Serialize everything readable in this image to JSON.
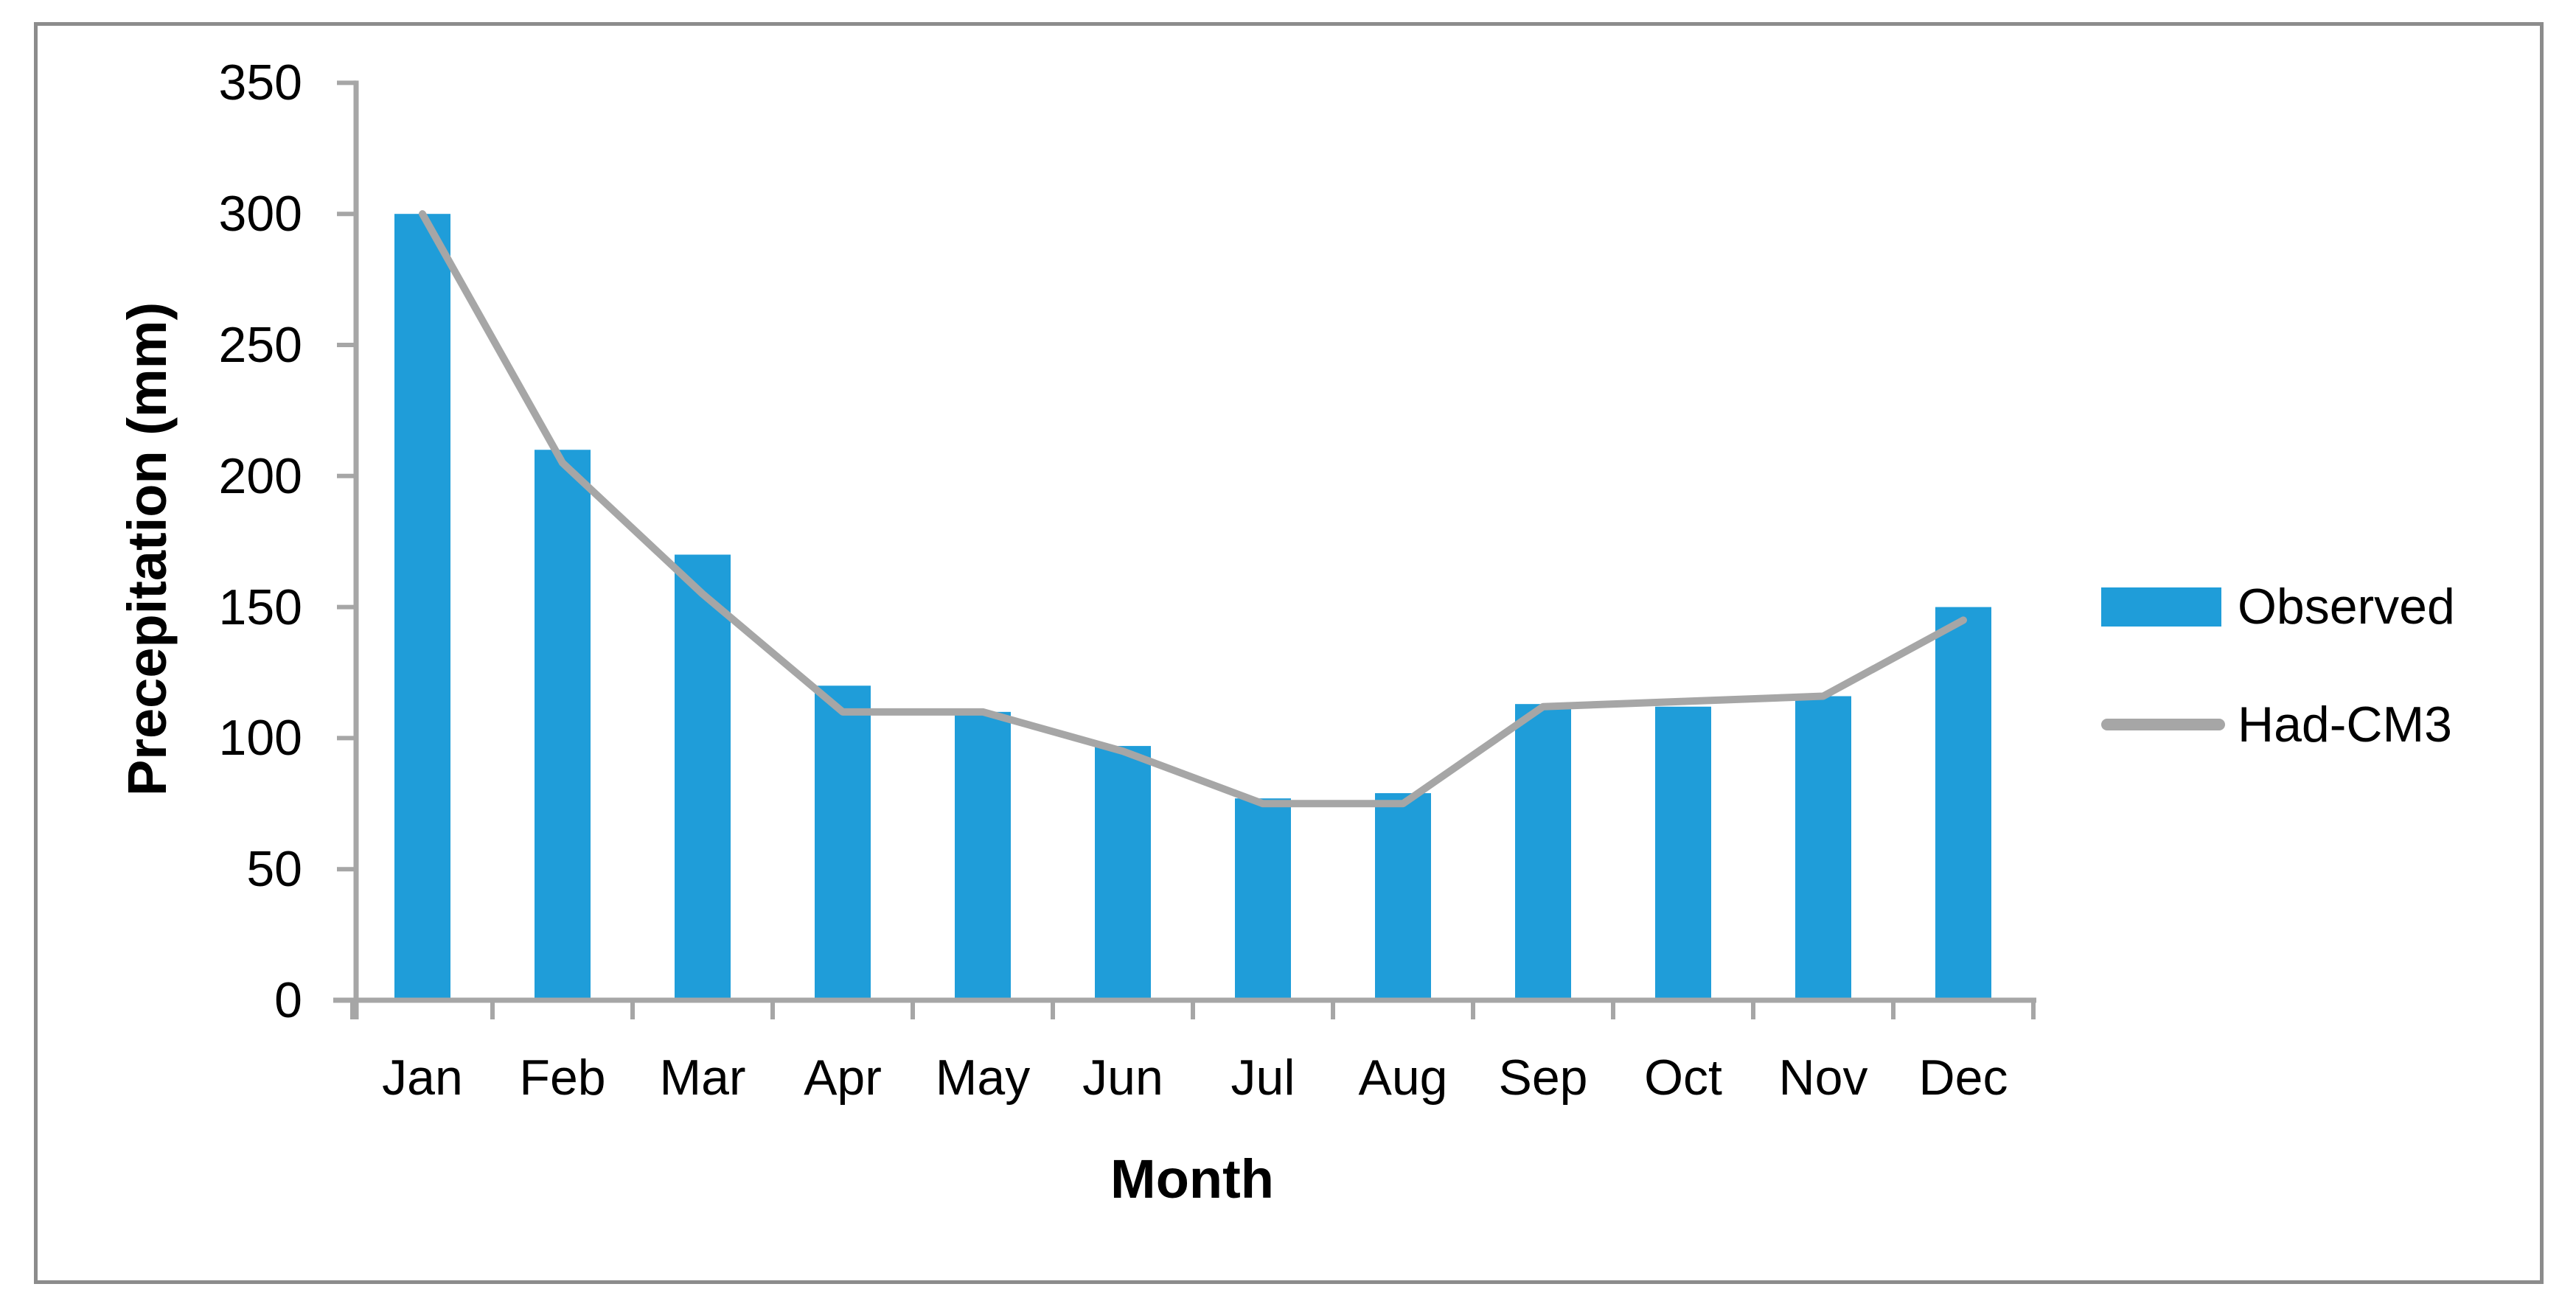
{
  "chart_data": {
    "type": "bar",
    "subtype": "bar-with-line-overlay",
    "title": "",
    "categories": [
      "Jan",
      "Feb",
      "Mar",
      "Apr",
      "May",
      "Jun",
      "Jul",
      "Aug",
      "Sep",
      "Oct",
      "Nov",
      "Dec"
    ],
    "series": [
      {
        "name": "Observed",
        "type": "bar",
        "color": "#1F9DD9",
        "values": [
          300,
          210,
          170,
          120,
          110,
          97,
          77,
          79,
          113,
          112,
          116,
          150
        ]
      },
      {
        "name": "Had-CM3",
        "type": "line",
        "color": "#A6A6A6",
        "values": [
          300,
          205,
          155,
          110,
          110,
          95,
          75,
          75,
          112,
          114,
          116,
          145
        ]
      }
    ],
    "xlabel": "Month",
    "ylabel": "Precepitation (mm)",
    "ylim": [
      0,
      350
    ],
    "ytick_step": 50,
    "yticks": [
      350,
      300,
      250,
      200,
      150,
      100,
      50,
      0
    ],
    "grid": false,
    "legend_position": "right-middle"
  },
  "legend": {
    "items": [
      {
        "label": "Observed",
        "swatch": "bar",
        "color": "#1F9DD9"
      },
      {
        "label": "Had-CM3",
        "swatch": "line",
        "color": "#A6A6A6"
      }
    ]
  },
  "colors": {
    "bar": "#1F9DD9",
    "line": "#A6A6A6",
    "axis": "#A6A6A6",
    "border": "#8C8C8C",
    "text": "#000000",
    "background": "#FFFFFF"
  }
}
